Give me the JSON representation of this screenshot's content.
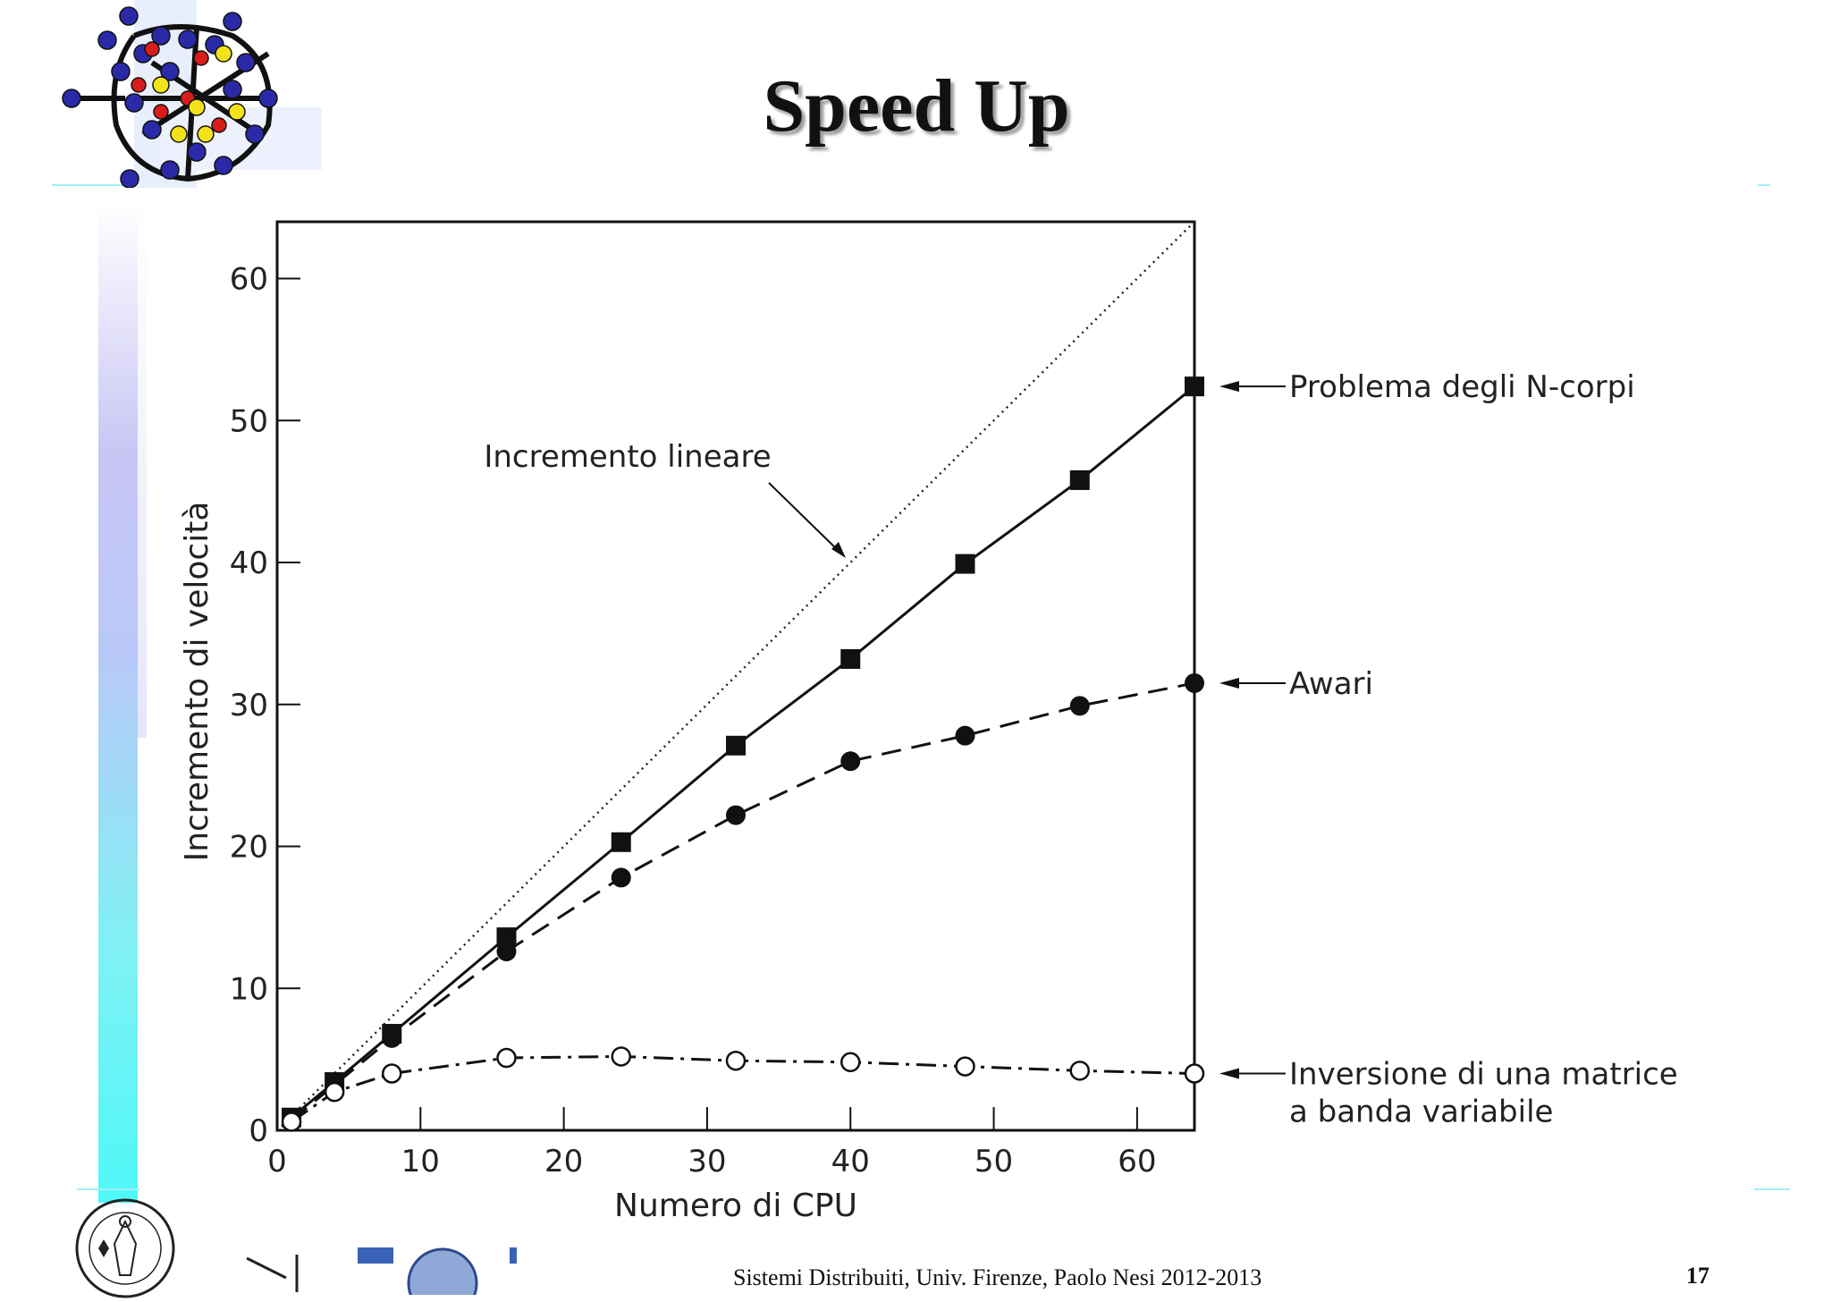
{
  "slide": {
    "title": "Speed Up",
    "footer": "Sistemi Distribuiti, Univ. Firenze, Paolo Nesi 2012-2013",
    "page_number": "17"
  },
  "colors": {
    "title_shadow": "#9a9a9a",
    "accent_cyan": "#4ff8f8",
    "accent_lavender": "#c9c6f4",
    "atom_blue": "#2a2aa8",
    "atom_red": "#d81c1c",
    "atom_yellow": "#f3e21a"
  },
  "chart_data": {
    "type": "line",
    "xlabel": "Numero di CPU",
    "ylabel": "Incremento di velocità",
    "xlim": [
      0,
      64
    ],
    "ylim": [
      0,
      64
    ],
    "xticks": [
      0,
      10,
      20,
      30,
      40,
      50,
      60
    ],
    "yticks": [
      0,
      10,
      20,
      30,
      40,
      50,
      60
    ],
    "grid": false,
    "reference_line": {
      "label": "Incremento lineare",
      "x": [
        0,
        64
      ],
      "y": [
        0,
        64
      ],
      "style": "dotted"
    },
    "series": [
      {
        "name": "Problema degli N-corpi",
        "marker": "filled-square",
        "style": "solid",
        "x": [
          1,
          4,
          8,
          16,
          24,
          32,
          40,
          48,
          56,
          64
        ],
        "y": [
          0.9,
          3.4,
          6.8,
          13.6,
          20.3,
          27.1,
          33.2,
          39.9,
          45.8,
          52.4
        ]
      },
      {
        "name": "Awari",
        "marker": "filled-circle",
        "style": "dashed",
        "x": [
          1,
          4,
          8,
          16,
          24,
          32,
          40,
          48,
          56,
          64
        ],
        "y": [
          0.7,
          3.2,
          6.5,
          12.6,
          17.8,
          22.2,
          26.0,
          27.8,
          29.9,
          31.5
        ]
      },
      {
        "name": "Inversione di una matrice a banda variabile",
        "label_lines": [
          "Inversione di una matrice",
          "a banda variabile"
        ],
        "marker": "open-circle",
        "style": "dash-dot",
        "x": [
          1,
          4,
          8,
          16,
          24,
          32,
          40,
          48,
          56,
          64
        ],
        "y": [
          0.6,
          2.7,
          4.0,
          5.1,
          5.2,
          4.9,
          4.8,
          4.5,
          4.2,
          4.0
        ]
      }
    ]
  }
}
